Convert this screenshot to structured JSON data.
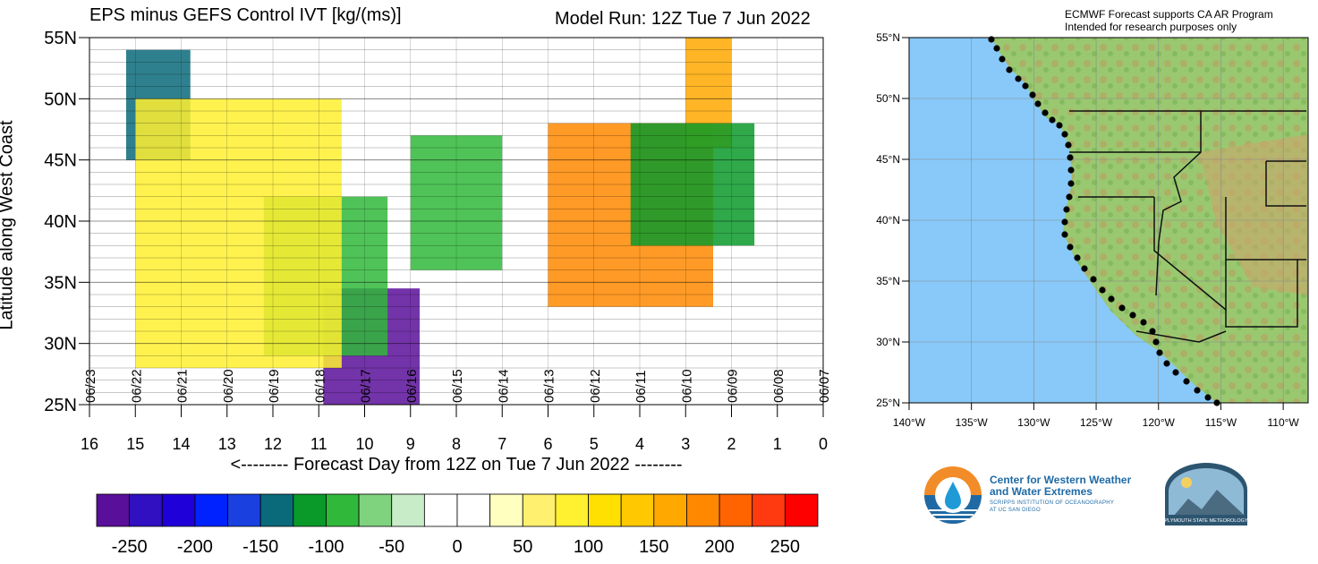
{
  "chart_data": {
    "type": "heatmap",
    "title": "EPS minus GEFS Control IVT [kg/(ms)]",
    "subtitle": "Model Run: 12Z Tue 7 Jun 2022",
    "xlabel": "<-------- Forecast Day from 12Z on Tue 7 Jun 2022 --------",
    "ylabel": "Latitude along West Coast",
    "x_ticks": [
      "16",
      "15",
      "14",
      "13",
      "12",
      "11",
      "10",
      "9",
      "8",
      "7",
      "6",
      "5",
      "4",
      "3",
      "2",
      "1",
      "0"
    ],
    "x_reversed": true,
    "xlim": [
      16,
      0
    ],
    "y_ticks": [
      "25N",
      "30N",
      "35N",
      "40N",
      "45N",
      "50N",
      "55N"
    ],
    "ylim": [
      25,
      55
    ],
    "date_labels": [
      "06/23",
      "06/22",
      "06/21",
      "06/20",
      "06/19",
      "06/18",
      "06/17",
      "06/16",
      "06/15",
      "06/14",
      "06/13",
      "06/12",
      "06/11",
      "06/10",
      "06/09",
      "06/08",
      "06/07"
    ],
    "grid": true,
    "colorbar": {
      "ticks": [
        "-250",
        "-200",
        "-150",
        "-100",
        "-50",
        "0",
        "50",
        "100",
        "150",
        "200",
        "250"
      ],
      "colors": [
        "#5a0f9a",
        "#3010c0",
        "#2000d8",
        "#0022ff",
        "#1a40e0",
        "#0a6a7a",
        "#0a9a2a",
        "#30b83a",
        "#7fd37f",
        "#c8ecc8",
        "#ffffff",
        "#ffffff",
        "#ffffc0",
        "#fff070",
        "#fff030",
        "#ffe000",
        "#ffc800",
        "#ffa800",
        "#ff8800",
        "#ff6400",
        "#ff3a10",
        "#ff0000"
      ]
    },
    "regions": [
      {
        "name": "negative-core",
        "x": [
          8.8,
          10.9
        ],
        "y": [
          25,
          34.5
        ],
        "value": -260
      },
      {
        "name": "negative-band-west",
        "x": [
          9.5,
          12.2
        ],
        "y": [
          29,
          42
        ],
        "value": -100
      },
      {
        "name": "negative-patch",
        "x": [
          13.8,
          15.2
        ],
        "y": [
          45,
          54
        ],
        "value": -140
      },
      {
        "name": "positive-west",
        "x": [
          10.5,
          15
        ],
        "y": [
          28,
          50
        ],
        "value": 80
      },
      {
        "name": "positive-ridge",
        "x": [
          2.4,
          6
        ],
        "y": [
          33,
          48
        ],
        "value": 180
      },
      {
        "name": "positive-north",
        "x": [
          2,
          3
        ],
        "y": [
          46,
          55
        ],
        "value": 150
      },
      {
        "name": "negative-mid",
        "x": [
          7,
          9
        ],
        "y": [
          36,
          47
        ],
        "value": -100
      },
      {
        "name": "negative-east",
        "x": [
          1.5,
          4.2
        ],
        "y": [
          38,
          48
        ],
        "value": -120
      }
    ]
  },
  "map": {
    "note_line1": "ECMWF Forecast supports CA AR Program",
    "note_line2": "Intended for research purposes only",
    "lat_labels": [
      "55°N",
      "50°N",
      "45°N",
      "40°N",
      "35°N",
      "30°N",
      "25°N"
    ],
    "lon_labels": [
      "140°W",
      "135°W",
      "130°W",
      "125°W",
      "120°W",
      "115°W",
      "110°W"
    ],
    "ocean_color": "#88c9f9"
  },
  "logos": {
    "cw3e_line1": "Center for Western Weather",
    "cw3e_line2": "and Water Extremes",
    "cw3e_line3": "SCRIPPS INSTITUTION OF OCEANOGRAPHY",
    "cw3e_line4": "AT UC SAN DIEGO",
    "psu": "PLYMOUTH STATE METEOROLOGY"
  }
}
